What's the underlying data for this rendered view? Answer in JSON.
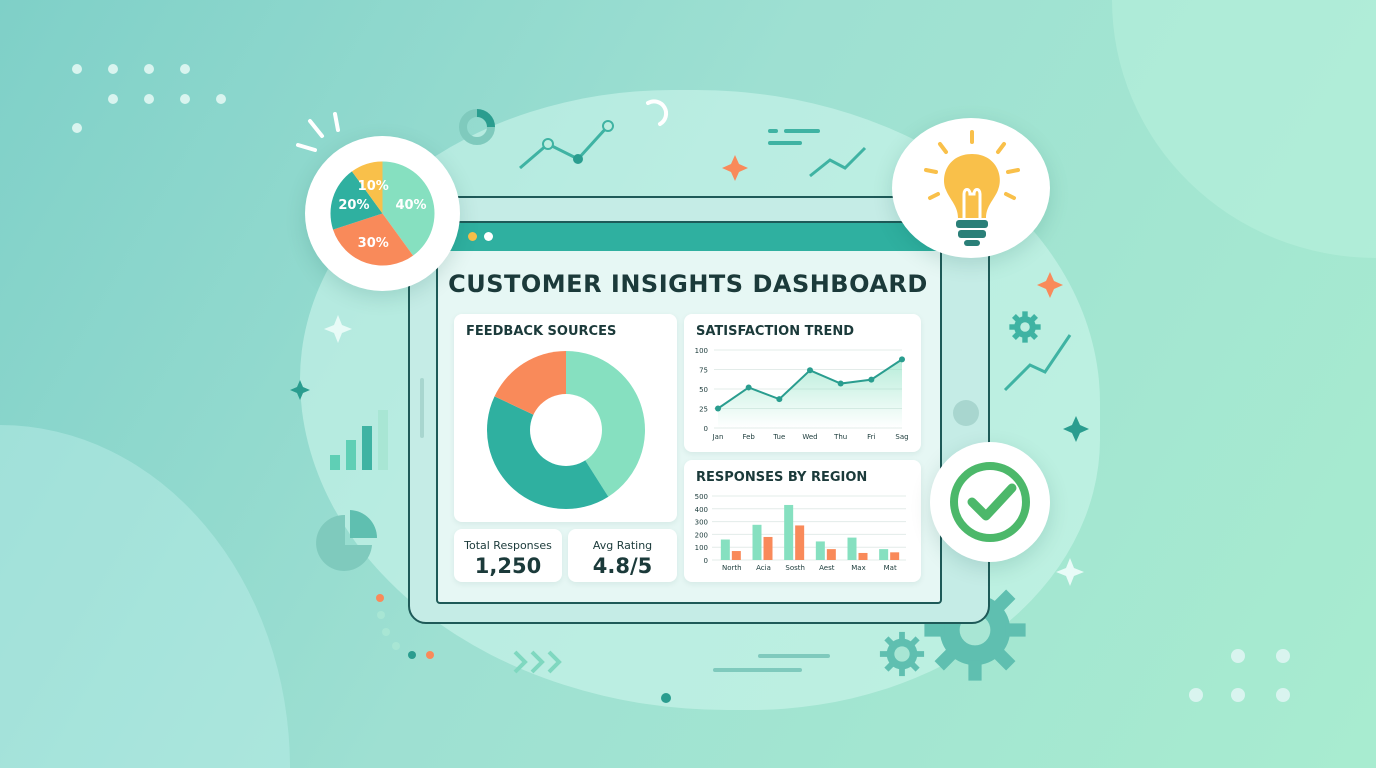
{
  "dashboard": {
    "title": "CUSTOMER INSIGHTS DASHBOARD"
  },
  "colors": {
    "teal": "#2fb0a0",
    "mint": "#86e0c0",
    "orange": "#f98a5a",
    "yellow": "#f9c04a",
    "dark": "#1b3a3a",
    "green_check": "#4cb86a"
  },
  "feedback_sources": {
    "title": "FEEDBACK SOURCES",
    "type": "donut",
    "slices": [
      {
        "color": "#86e0c0",
        "value": 41
      },
      {
        "color": "#2fb0a0",
        "value": 41
      },
      {
        "color": "#f98a5a",
        "value": 18
      }
    ]
  },
  "stats": [
    {
      "label": "Total Responses",
      "value": "1,250"
    },
    {
      "label": "Avg Rating",
      "value": "4.8/5"
    }
  ],
  "chart_data": [
    {
      "type": "area",
      "title": "SATISFACTION TREND",
      "categories": [
        "Jan",
        "Feb",
        "Tue",
        "Wed",
        "Thu",
        "Fri",
        "Sag"
      ],
      "values": [
        25,
        52,
        37,
        74,
        57,
        62,
        88
      ],
      "yticks": [
        "0",
        "25",
        "50",
        "75",
        "100"
      ],
      "ylim": [
        0,
        100
      ],
      "grid": true
    },
    {
      "type": "bar",
      "title": "RESPONSES BY REGION",
      "categories": [
        "North",
        "Acia",
        "Sosth",
        "Aest",
        "Max",
        "Mat"
      ],
      "series": [
        {
          "color": "#86e0c0",
          "values": [
            160,
            275,
            430,
            145,
            175,
            85
          ]
        },
        {
          "color": "#f98a5a",
          "values": [
            70,
            180,
            270,
            85,
            55,
            60
          ]
        }
      ],
      "yticks": [
        "0",
        "100",
        "200",
        "300",
        "400",
        "500"
      ],
      "ylim": [
        0,
        500
      ],
      "grid": true
    },
    {
      "type": "pie",
      "labels": [
        "40%",
        "30%",
        "20%",
        "10%"
      ],
      "values": [
        40,
        30,
        20,
        10
      ],
      "colors": [
        "#86e0c0",
        "#f98a5a",
        "#2fb0a0",
        "#f9c04a"
      ]
    }
  ],
  "icons": [
    "lightbulb-icon",
    "check-circle-icon",
    "gear-icon",
    "sparkle-icon",
    "trend-arrow-icon"
  ]
}
